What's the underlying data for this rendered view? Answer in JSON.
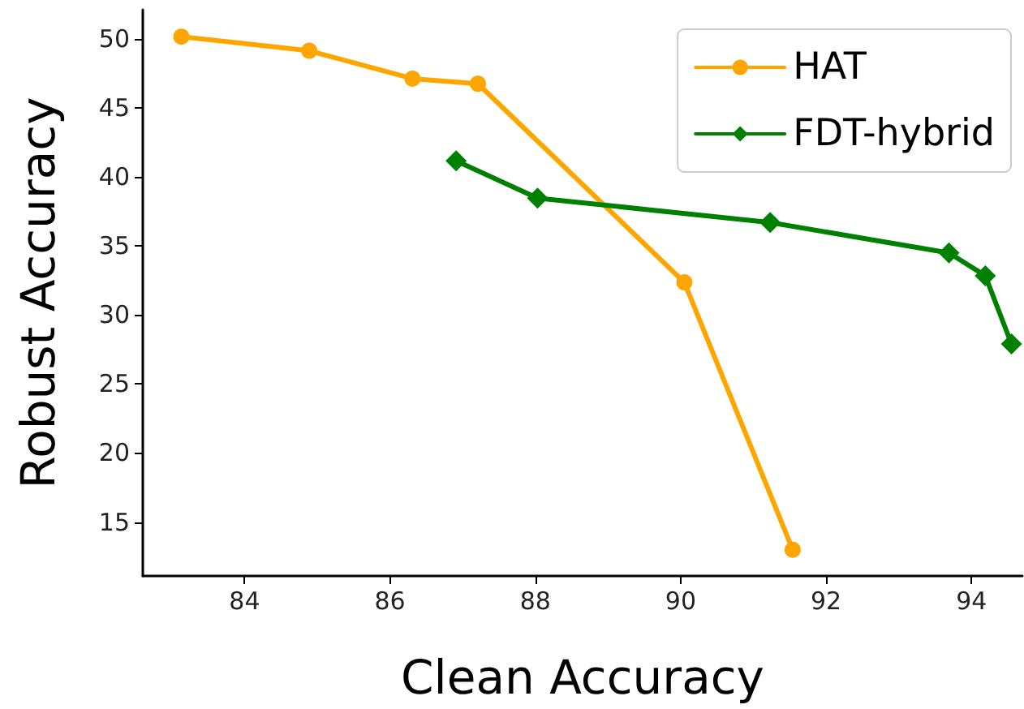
{
  "chart_data": {
    "type": "line",
    "xlabel": "Clean Accuracy",
    "ylabel": "Robust Accuracy",
    "series": [
      {
        "name": "HAT",
        "color": "#ffa500",
        "marker": "circle",
        "x": [
          83.13,
          84.89,
          86.31,
          87.21,
          90.05,
          91.54
        ],
        "values": [
          50.15,
          49.13,
          47.11,
          46.74,
          32.36,
          13.0
        ]
      },
      {
        "name": "FDT-hybrid",
        "color": "#008000",
        "marker": "diamond",
        "x": [
          86.91,
          88.03,
          91.23,
          93.69,
          94.19,
          94.55
        ],
        "values": [
          41.16,
          38.46,
          36.7,
          34.49,
          32.84,
          27.9
        ]
      }
    ],
    "xlim": [
      82.6,
      94.7
    ],
    "xticks": [
      84,
      86,
      88,
      90,
      92,
      94
    ],
    "ylim": [
      11.1,
      52.1
    ],
    "yticks": [
      15,
      20,
      25,
      30,
      35,
      40,
      45,
      50
    ],
    "grid": false,
    "legend": "top right",
    "line_style": "solid"
  }
}
